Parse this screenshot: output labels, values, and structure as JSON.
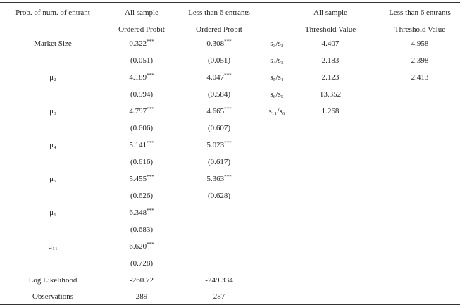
{
  "header_rows": [
    {
      "label": "Prob. of num. of entrant",
      "all": "All sample",
      "less6": "Less than 6 entrants",
      "thr_all": "All sample",
      "thr_less6": "Less than 6 entrants"
    },
    {
      "all": "Ordered Probit",
      "less6": "Ordered Probit",
      "thr_all": "Threshold Value",
      "thr_less6": "Threshold Value"
    }
  ],
  "rows": [
    {
      "label": "Market Size",
      "all": {
        "value": "0.322",
        "stars": "***"
      },
      "less6": {
        "value": "0.308",
        "stars": "***"
      },
      "ratio": "s₃/s₂",
      "thr_all": "4.407",
      "thr_less6": "4.958"
    },
    {
      "all": "(0.051)",
      "less6": "(0.051)",
      "ratio": "s₄/s₃",
      "thr_all": "2.183",
      "thr_less6": "2.398"
    },
    {
      "label": "μ₂",
      "all": {
        "value": "4.189",
        "stars": "***"
      },
      "less6": {
        "value": "4.047",
        "stars": "***"
      },
      "ratio": "s₅/s₄",
      "thr_all": "2.123",
      "thr_less6": "2.413"
    },
    {
      "all": "(0.594)",
      "less6": "(0.584)",
      "ratio": "s₆/s₅",
      "thr_all": "13.352"
    },
    {
      "label": "μ₃",
      "all": {
        "value": "4.797",
        "stars": "***"
      },
      "less6": {
        "value": "4.665",
        "stars": "***"
      },
      "ratio": "s₁₁/s₆",
      "thr_all": "1.268"
    },
    {
      "all": "(0.606)",
      "less6": "(0.607)"
    },
    {
      "label": "μ₄",
      "all": {
        "value": "5.141",
        "stars": "***"
      },
      "less6": {
        "value": "5.023",
        "stars": "***"
      }
    },
    {
      "all": "(0.616)",
      "less6": "(0.617)"
    },
    {
      "label": "μ₅",
      "all": {
        "value": "5.455",
        "stars": "***"
      },
      "less6": {
        "value": "5.363",
        "stars": "***"
      }
    },
    {
      "all": "(0.626)",
      "less6": "(0.628)"
    },
    {
      "label": "μ₆",
      "all": {
        "value": "6.348",
        "stars": "***"
      }
    },
    {
      "all": "(0.683)"
    },
    {
      "label": "μ₁₁",
      "all": {
        "value": "6.620",
        "stars": "***"
      }
    },
    {
      "all": "(0.728)"
    },
    {
      "label": "Log Likelihood",
      "all": "-260.72",
      "less6": "-249.334"
    },
    {
      "label": "Observations",
      "all": "289",
      "less6": "287"
    }
  ]
}
